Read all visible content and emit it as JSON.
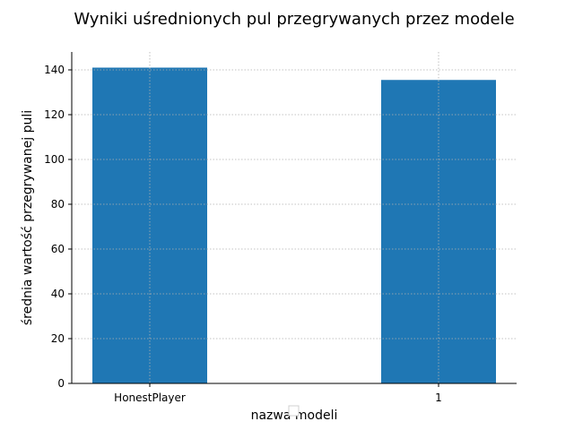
{
  "chart_data": {
    "type": "bar",
    "title": "Wyniki uśrednionych pul przegrywanych przez modele",
    "xlabel": "nazwa modeli",
    "ylabel": "średnia wartość przegrywanej puli",
    "categories": [
      "HonestPlayer",
      "1"
    ],
    "values": [
      141,
      135.5
    ],
    "ylim": [
      0,
      148
    ],
    "yticks": [
      0,
      20,
      40,
      60,
      80,
      100,
      120,
      140
    ],
    "grid": true,
    "bar_color": "#1f77b4",
    "grid_color": "#b0b0b0",
    "legend": "bottom-center (empty)"
  }
}
